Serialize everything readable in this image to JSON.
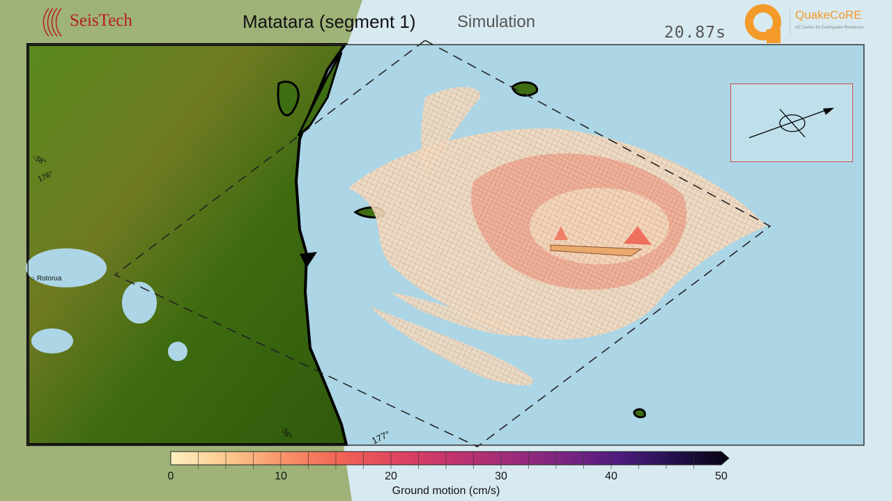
{
  "header": {
    "title": "Matatara (segment 1)",
    "subtitle": "Simulation",
    "time": "20.87s"
  },
  "logos": {
    "seistech": "SeisTech",
    "quakecore": "QuakeCoRE",
    "quakecore_tagline": "NZ Centre for Earthquake Resilience"
  },
  "map": {
    "labels": {
      "city": "Rotorua",
      "lat_left": "-38°",
      "lon_left": "176°",
      "lat_bottom": "-38°",
      "lon_bottom": "177°"
    },
    "colors": {
      "land": "#3f6d12",
      "sea": "#acd6e6",
      "mesh": "#e8806b",
      "inset_border": "#d24b4b"
    }
  },
  "colorbar": {
    "label": "Ground motion (cm/s)",
    "min": 0,
    "max": 50,
    "ticks": [
      "0",
      "10",
      "20",
      "30",
      "40",
      "50"
    ],
    "colormap": [
      "#fdf1c2",
      "#fbc98e",
      "#f8956a",
      "#f16555",
      "#e0465f",
      "#c4336c",
      "#a12d79",
      "#7c2581",
      "#501c80",
      "#24104f",
      "#05030f"
    ]
  }
}
